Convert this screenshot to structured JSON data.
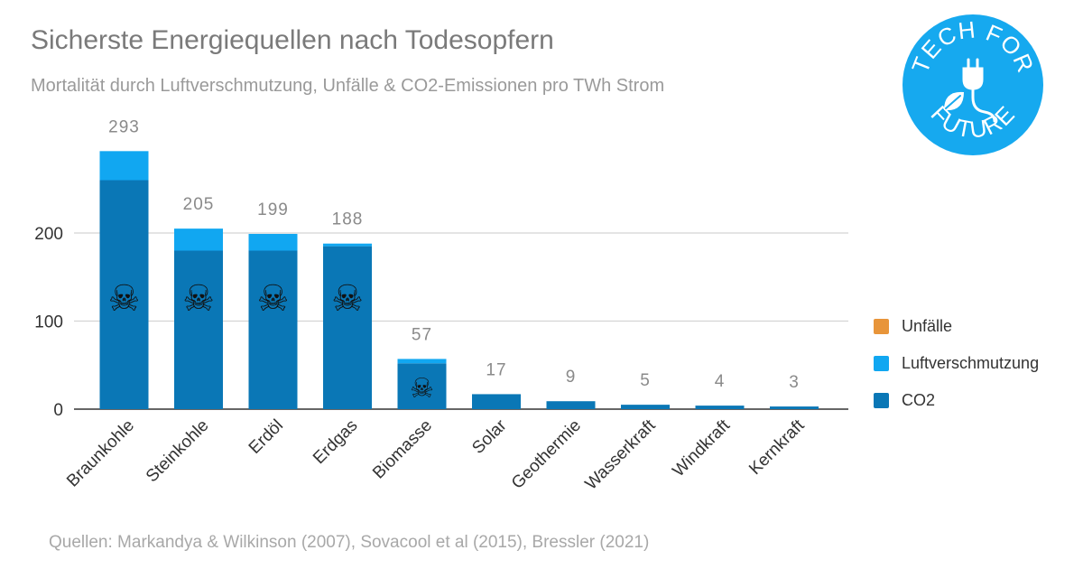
{
  "colors": {
    "co2": "#0a77b6",
    "air": "#11a7f1",
    "accidents": "#e8953a",
    "grid": "#d4d4d4",
    "axis": "#333333",
    "label": "#8a8a8a",
    "logo": "#16a9ef"
  },
  "header": {
    "title": "Sicherste Energiequellen nach Todesopfern",
    "subtitle": "Mortalität durch Luftverschmutzung, Unfälle & CO2-Emissionen pro TWh Strom"
  },
  "logo": {
    "top_text": "TECH FOR",
    "bottom_text": "FUTURE",
    "icon": "plug-leaf-icon"
  },
  "footer": {
    "source": "Quellen: Markandya & Wilkinson (2007), Sovacool et al (2015), Bressler (2021)"
  },
  "legend": [
    {
      "label": "Unfälle",
      "color": "#e8953a"
    },
    {
      "label": "Luftverschmutzung",
      "color": "#11a7f1"
    },
    {
      "label": "CO2",
      "color": "#0a77b6"
    }
  ],
  "chart_data": {
    "type": "bar",
    "stacked": true,
    "title": "Sicherste Energiequellen nach Todesopfern",
    "subtitle": "Mortalität durch Luftverschmutzung, Unfälle & CO2-Emissionen pro TWh Strom",
    "xlabel": "",
    "ylabel": "",
    "ylim": [
      0,
      300
    ],
    "yticks": [
      0,
      100,
      200
    ],
    "grid": true,
    "legend_position": "right",
    "categories": [
      "Braunkohle",
      "Steinkohle",
      "Erdöl",
      "Erdgas",
      "Biomasse",
      "Solar",
      "Geothermie",
      "Wasserkraft",
      "Windkraft",
      "Kernkraft"
    ],
    "series": [
      {
        "name": "CO2",
        "values": [
          260,
          180,
          180,
          185,
          52,
          17,
          9,
          5,
          4,
          3
        ]
      },
      {
        "name": "Luftverschmutzung",
        "values": [
          33,
          25,
          19,
          3,
          5,
          0,
          0,
          0,
          0,
          0
        ]
      },
      {
        "name": "Unfälle",
        "values": [
          0,
          0,
          0,
          0,
          0,
          0,
          0,
          0,
          0,
          0
        ]
      }
    ],
    "totals": [
      293,
      205,
      199,
      188,
      57,
      17,
      9,
      5,
      4,
      3
    ],
    "skull_icon_on": [
      "Braunkohle",
      "Steinkohle",
      "Erdöl",
      "Erdgas",
      "Biomasse"
    ]
  }
}
